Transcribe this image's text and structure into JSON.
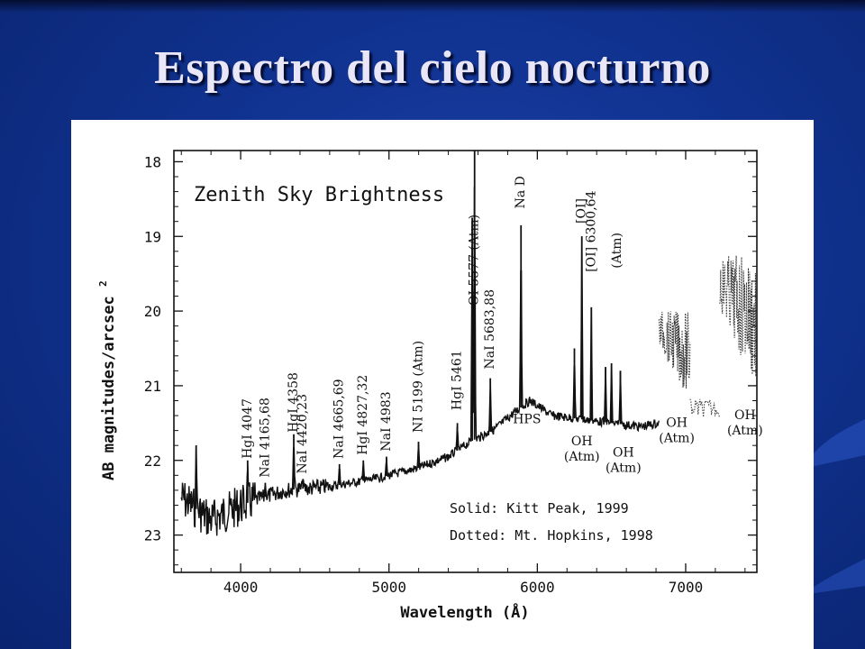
{
  "slide": {
    "title": "Espectro del cielo nocturno",
    "background_color": "#10328f",
    "title_color": "#e9e6f7"
  },
  "chart_data": {
    "type": "line",
    "title": "Zenith Sky Brightness",
    "xlabel": "Wavelength (Å)",
    "ylabel": "AB magnitudes/arcsec",
    "ylabel_superscript": "2",
    "xlim": [
      3550,
      7480
    ],
    "ylim": [
      23.5,
      17.85
    ],
    "y_inverted": true,
    "x_ticks": [
      4000,
      5000,
      6000,
      7000
    ],
    "y_ticks": [
      18,
      19,
      20,
      21,
      22,
      23
    ],
    "legend": {
      "solid": "Solid: Kitt Peak, 1999",
      "dotted": "Dotted: Mt. Hopkins, 1998"
    },
    "series": [
      {
        "name": "Solid: Kitt Peak, 1999",
        "style": "solid",
        "x_range": [
          3600,
          6820
        ],
        "continuum": [
          [
            3600,
            22.5
          ],
          [
            3800,
            22.8
          ],
          [
            4000,
            22.6
          ],
          [
            4300,
            22.4
          ],
          [
            4600,
            22.35
          ],
          [
            4900,
            22.25
          ],
          [
            5200,
            22.1
          ],
          [
            5400,
            21.95
          ],
          [
            5550,
            21.75
          ],
          [
            5700,
            21.6
          ],
          [
            5850,
            21.35
          ],
          [
            5950,
            21.2
          ],
          [
            6100,
            21.4
          ],
          [
            6300,
            21.45
          ],
          [
            6500,
            21.5
          ],
          [
            6700,
            21.55
          ],
          [
            6820,
            21.5
          ]
        ],
        "peaks": [
          {
            "x": 3700,
            "y": 21.8
          },
          {
            "x": 4047,
            "y": 22.0
          },
          {
            "x": 4166,
            "y": 22.3
          },
          {
            "x": 4358,
            "y": 21.65
          },
          {
            "x": 4420,
            "y": 22.25
          },
          {
            "x": 4666,
            "y": 22.05
          },
          {
            "x": 4827,
            "y": 22.0
          },
          {
            "x": 4983,
            "y": 21.95
          },
          {
            "x": 5199,
            "y": 21.75
          },
          {
            "x": 5461,
            "y": 21.5
          },
          {
            "x": 5561,
            "y": 18.75
          },
          {
            "x": 5577,
            "y": 17.85
          },
          {
            "x": 5683,
            "y": 20.9
          },
          {
            "x": 5890,
            "y": 18.85
          },
          {
            "x": 6250,
            "y": 20.5
          },
          {
            "x": 6300,
            "y": 19.0
          },
          {
            "x": 6364,
            "y": 19.95
          },
          {
            "x": 6460,
            "y": 20.75
          },
          {
            "x": 6500,
            "y": 20.7
          },
          {
            "x": 6560,
            "y": 20.8
          }
        ]
      },
      {
        "name": "Dotted: Mt. Hopkins, 1998",
        "style": "dotted",
        "x_range": [
          6820,
          7480
        ],
        "bands": [
          {
            "x0": 6820,
            "x1": 7030,
            "top": 20.0,
            "bottom": 21.2
          },
          {
            "x0": 7230,
            "x1": 7480,
            "top": 19.25,
            "bottom": 21.1
          }
        ]
      }
    ],
    "annotations": [
      {
        "text": "HgI 4047",
        "x": 4047,
        "y": 22.05
      },
      {
        "text": "NaI 4165,68",
        "x": 4166,
        "y": 22.3
      },
      {
        "text": "HgI 4358",
        "x": 4358,
        "y": 21.7
      },
      {
        "text": "NaI 4420,23",
        "x": 4420,
        "y": 22.25
      },
      {
        "text": "NaI 4665,69",
        "x": 4666,
        "y": 22.05
      },
      {
        "text": "HgI 4827,32",
        "x": 4827,
        "y": 22.0
      },
      {
        "text": "NaI 4983",
        "x": 4983,
        "y": 21.95
      },
      {
        "text": "NI 5199 (Atm)",
        "x": 5199,
        "y": 21.7
      },
      {
        "text": "HgI 5461",
        "x": 5461,
        "y": 21.4
      },
      {
        "text": "OI 5577 (Atm)",
        "x": 5577,
        "y": 20.0
      },
      {
        "text": "NaI 5683,88",
        "x": 5683,
        "y": 20.85
      },
      {
        "text": "Na D",
        "x": 5890,
        "y": 18.7
      },
      {
        "text": "[OI]",
        "x": 6300,
        "y": 18.9
      },
      {
        "text": "[OI] 6300,64",
        "x": 6364,
        "y": 19.55
      },
      {
        "text": "(Atm)",
        "x": 6540,
        "y": 19.5
      },
      {
        "text": "HPS",
        "x": 5930,
        "y": 21.5
      },
      {
        "text": "OH (Atm)",
        "x": 6300,
        "y": 21.8
      },
      {
        "text": "OH (Atm)",
        "x": 6580,
        "y": 21.95
      },
      {
        "text": "OH (Atm)",
        "x": 6940,
        "y": 21.55
      },
      {
        "text": "OH (Atm)",
        "x": 7400,
        "y": 21.45
      }
    ]
  }
}
